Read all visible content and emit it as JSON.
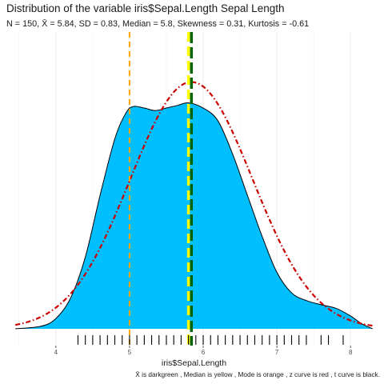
{
  "title": "Distribution of the variable iris$Sepal.Length Sepal Length",
  "subtitle": "N = 150, X̄ = 5.84, SD = 0.83, Median = 5.8, Skewness = 0.31, Kurtosis = -0.61",
  "caption": "X̄ is darkgreen , Median is yellow , Mode is orange , z curve is red , t curve is black.",
  "colors": {
    "fill": "#00bfff",
    "density_line": "#000000",
    "normal_curve": "#cc0000",
    "mean_line": "#006400",
    "median_line": "#ffff00",
    "mode_line": "#ffa500",
    "grid": "#ebebeb",
    "rug": "#000000"
  },
  "chart_data": {
    "type": "area",
    "xlabel": "iris$Sepal.Length",
    "ylabel": "",
    "xlim": [
      3.35,
      8.4
    ],
    "ylim": [
      0,
      0.55
    ],
    "x_ticks": [
      4,
      5,
      6,
      7,
      8
    ],
    "grid": true,
    "stats": {
      "n": 150,
      "mean": 5.84,
      "sd": 0.83,
      "median": 5.8,
      "mode": 5.0,
      "skewness": 0.31,
      "kurtosis": -0.61
    },
    "series": [
      {
        "kind": "kernel_density",
        "x": [
          3.45,
          3.8,
          4.0,
          4.2,
          4.4,
          4.6,
          4.8,
          4.95,
          5.05,
          5.2,
          5.35,
          5.5,
          5.65,
          5.8,
          6.0,
          6.2,
          6.4,
          6.6,
          6.8,
          7.0,
          7.2,
          7.4,
          7.6,
          7.8,
          8.0,
          8.15,
          8.3
        ],
        "y": [
          0.0,
          0.005,
          0.02,
          0.06,
          0.14,
          0.26,
          0.37,
          0.42,
          0.433,
          0.43,
          0.425,
          0.43,
          0.435,
          0.44,
          0.43,
          0.405,
          0.34,
          0.26,
          0.18,
          0.11,
          0.07,
          0.055,
          0.047,
          0.04,
          0.025,
          0.01,
          0.0
        ]
      },
      {
        "kind": "normal_curve",
        "mean": 5.84,
        "sd": 0.83
      }
    ],
    "rug": [
      4.3,
      4.4,
      4.5,
      4.6,
      4.7,
      4.8,
      4.9,
      5.0,
      5.1,
      5.2,
      5.3,
      5.4,
      5.5,
      5.6,
      5.7,
      5.8,
      5.9,
      6.0,
      6.1,
      6.2,
      6.3,
      6.4,
      6.5,
      6.6,
      6.7,
      6.8,
      6.9,
      7.0,
      7.1,
      7.2,
      7.3,
      7.4,
      7.6,
      7.7,
      7.9
    ],
    "vlines": [
      {
        "name": "Mode",
        "x": 5.0,
        "color": "#ffa500"
      },
      {
        "name": "Median",
        "x": 5.8,
        "color": "#ffff00"
      },
      {
        "name": "Mean",
        "x": 5.84,
        "color": "#006400"
      }
    ]
  }
}
